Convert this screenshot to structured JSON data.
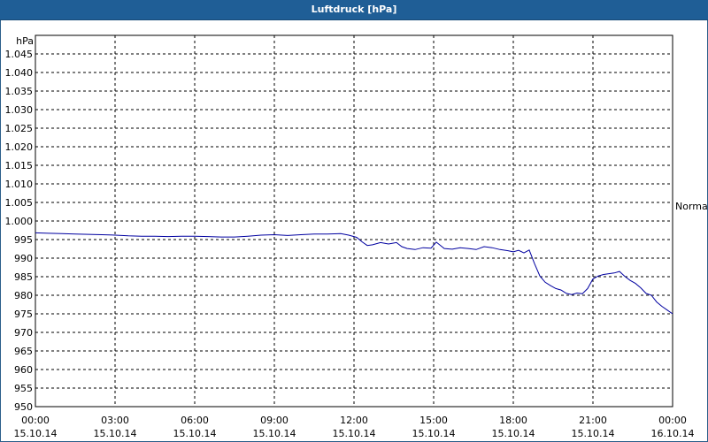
{
  "window": {
    "title": "Luftdruck [hPa]"
  },
  "chart_data": {
    "type": "line",
    "title": "Luftdruck [hPa]",
    "ylabel": "hPa",
    "ylim": [
      950,
      1050
    ],
    "yticks": [
      "950",
      "955",
      "960",
      "965",
      "970",
      "975",
      "980",
      "985",
      "990",
      "995",
      "1.000",
      "1.005",
      "1.010",
      "1.015",
      "1.020",
      "1.025",
      "1.030",
      "1.035",
      "1.040",
      "1.045"
    ],
    "xlim": [
      0,
      24
    ],
    "xticks": [
      {
        "time": "00:00",
        "date": "15.10.14"
      },
      {
        "time": "03:00",
        "date": "15.10.14"
      },
      {
        "time": "06:00",
        "date": "15.10.14"
      },
      {
        "time": "09:00",
        "date": "15.10.14"
      },
      {
        "time": "12:00",
        "date": "15.10.14"
      },
      {
        "time": "15:00",
        "date": "15.10.14"
      },
      {
        "time": "18:00",
        "date": "15.10.14"
      },
      {
        "time": "21:00",
        "date": "15.10.14"
      },
      {
        "time": "00:00",
        "date": "16.10.14"
      }
    ],
    "reference_label": "Normal",
    "reference_value": 1004,
    "grid": true,
    "line_color": "#0000a0",
    "series": [
      {
        "x": [
          0,
          0.5,
          1,
          1.5,
          2,
          2.5,
          3,
          3.5,
          4,
          4.5,
          5,
          5.5,
          6,
          6.5,
          7,
          7.5,
          8,
          8.5,
          9,
          9.5,
          10,
          10.5,
          11,
          11.5,
          11.8,
          12.1,
          12.3,
          12.5,
          12.7,
          13.0,
          13.3,
          13.6,
          13.8,
          14.0,
          14.3,
          14.6,
          14.9,
          15.1,
          15.4,
          15.7,
          16.0,
          16.3,
          16.6,
          16.9,
          17.2,
          17.5,
          17.8,
          18.0,
          18.2,
          18.4,
          18.6,
          18.8,
          19.0,
          19.2,
          19.4,
          19.6,
          19.8,
          20.0,
          20.2,
          20.4,
          20.6,
          20.8,
          21.0,
          21.2,
          21.4,
          21.6,
          21.8,
          22.0,
          22.2,
          22.4,
          22.6,
          22.8,
          23.0,
          23.2,
          23.4,
          23.6,
          23.8,
          24.0
        ],
        "y": [
          996.8,
          996.7,
          996.6,
          996.5,
          996.4,
          996.3,
          996.2,
          996.0,
          995.9,
          995.9,
          995.8,
          995.9,
          995.9,
          995.8,
          995.7,
          995.7,
          995.9,
          996.2,
          996.3,
          996.1,
          996.3,
          996.5,
          996.5,
          996.6,
          996.2,
          995.6,
          994.4,
          993.4,
          993.6,
          994.2,
          993.8,
          994.2,
          993.1,
          992.6,
          992.3,
          992.8,
          992.7,
          994.3,
          992.6,
          992.4,
          992.8,
          992.6,
          992.3,
          993.1,
          992.8,
          992.3,
          992.0,
          991.7,
          992.1,
          991.4,
          992.2,
          988.5,
          985.2,
          983.5,
          982.6,
          981.8,
          981.4,
          980.5,
          980.2,
          980.6,
          980.4,
          981.8,
          984.4,
          985.2,
          985.6,
          985.8,
          986.0,
          986.4,
          985.1,
          984.0,
          983.2,
          982.0,
          980.5,
          980.0,
          978.2,
          977.0,
          976.0,
          975.0
        ]
      }
    ]
  }
}
